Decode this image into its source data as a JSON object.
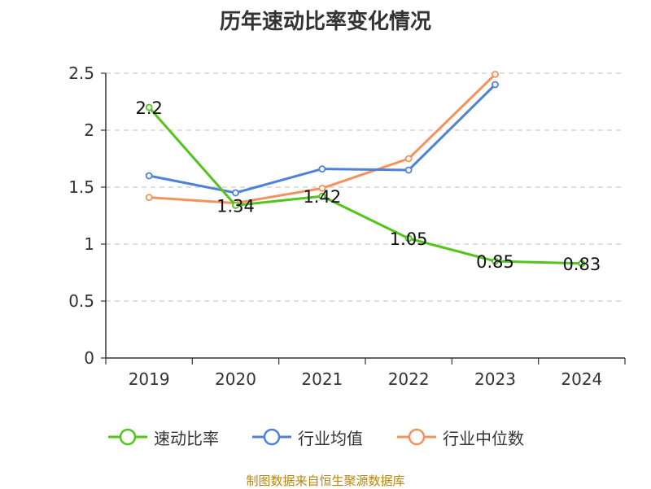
{
  "chart_data": {
    "type": "line",
    "title": "历年速动比率变化情况",
    "categories": [
      "2019",
      "2020",
      "2021",
      "2022",
      "2023",
      "2024"
    ],
    "ylim": [
      0,
      2.5
    ],
    "yticks": [
      "0",
      "0.5",
      "1",
      "1.5",
      "2",
      "2.5"
    ],
    "grid": true,
    "legend_position": "bottom",
    "series": [
      {
        "name": "速动比率",
        "color": "#52c41a",
        "values": [
          2.2,
          1.34,
          1.42,
          1.05,
          0.85,
          0.83
        ],
        "data_labels": [
          "2.2",
          "1.34",
          "1.42",
          "1.05",
          "0.85",
          "0.83"
        ]
      },
      {
        "name": "行业均值",
        "color": "#4f81d9",
        "values": [
          1.6,
          1.45,
          1.66,
          1.65,
          2.4,
          null
        ]
      },
      {
        "name": "行业中位数",
        "color": "#f4925e",
        "values": [
          1.41,
          1.36,
          1.49,
          1.75,
          2.49,
          null
        ]
      }
    ]
  },
  "footer": {
    "source": "制图数据来自恒生聚源数据库"
  }
}
